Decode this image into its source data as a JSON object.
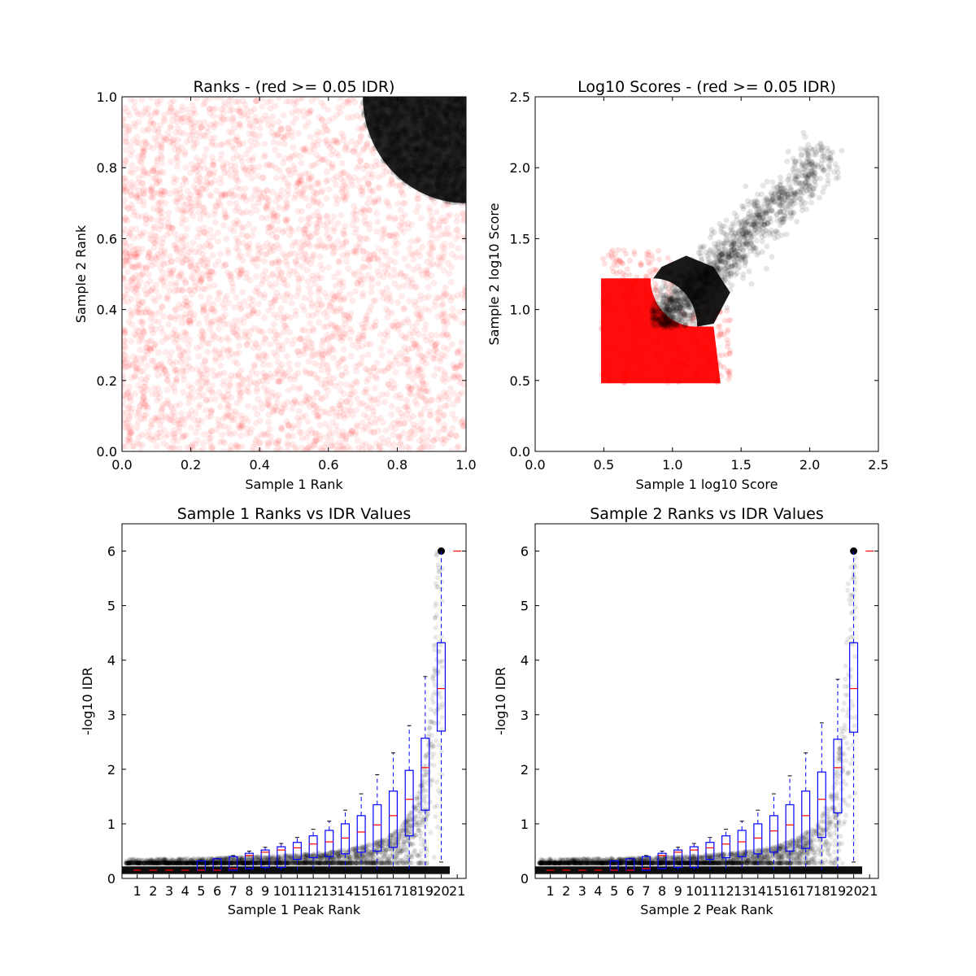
{
  "chart_data": [
    {
      "type": "scatter",
      "title": "Ranks - (red >= 0.05 IDR)",
      "xlabel": "Sample 1 Rank",
      "ylabel": "Sample 2 Rank",
      "xlim": [
        0.0,
        1.0
      ],
      "ylim": [
        0.0,
        1.0
      ],
      "xticks": [
        "0.0",
        "0.2",
        "0.4",
        "0.6",
        "0.8",
        "1.0"
      ],
      "yticks": [
        "0.0",
        "0.2",
        "0.4",
        "0.6",
        "0.8",
        "1.0"
      ],
      "series": [
        {
          "color": "#ff0000",
          "description_region": {
            "x": [
              0.0,
              1.0
            ],
            "y": [
              0.0,
              1.0
            ]
          },
          "points_approx": [
            [
              0.1,
              0.1
            ],
            [
              0.3,
              0.5
            ],
            [
              0.5,
              0.3
            ],
            [
              0.6,
              0.8
            ],
            [
              0.9,
              0.4
            ],
            [
              0.2,
              0.9
            ]
          ]
        },
        {
          "color": "#000000",
          "description_region": {
            "x": [
              0.7,
              1.0
            ],
            "y": [
              0.7,
              1.0
            ]
          },
          "points_approx": [
            [
              0.75,
              0.98
            ],
            [
              0.85,
              0.9
            ],
            [
              0.95,
              0.8
            ],
            [
              0.98,
              0.98
            ],
            [
              0.9,
              0.97
            ]
          ]
        }
      ],
      "grid": false
    },
    {
      "type": "scatter",
      "title": "Log10 Scores - (red >= 0.05 IDR)",
      "xlabel": "Sample 1 log10 Score",
      "ylabel": "Sample 2 log10 Score",
      "xlim": [
        0.0,
        2.5
      ],
      "ylim": [
        0.0,
        2.5
      ],
      "xticks": [
        "0.0",
        "0.5",
        "1.0",
        "1.5",
        "2.0",
        "2.5"
      ],
      "yticks": [
        "0.0",
        "0.5",
        "1.0",
        "1.5",
        "2.0",
        "2.5"
      ],
      "series": [
        {
          "color": "#ff0000",
          "description_region": {
            "x": [
              0.48,
              1.4
            ],
            "y": [
              0.48,
              1.4
            ]
          }
        },
        {
          "color": "#000000",
          "description_region": {
            "x": [
              0.85,
              2.15
            ],
            "y": [
              0.85,
              2.1
            ]
          }
        }
      ],
      "grid": false
    },
    {
      "type": "box",
      "title": "Sample 1 Ranks vs IDR Values",
      "xlabel": "Sample 1 Peak Rank",
      "ylabel": "-log10 IDR",
      "ylim": [
        0,
        6.5
      ],
      "xticks": [
        "1",
        "2",
        "3",
        "4",
        "5",
        "6",
        "7",
        "8",
        "9",
        "10",
        "11",
        "12",
        "13",
        "14",
        "15",
        "16",
        "17",
        "18",
        "19",
        "20",
        "21"
      ],
      "yticks": [
        "0",
        "1",
        "2",
        "3",
        "4",
        "5",
        "6"
      ],
      "boxes": [
        {
          "cat": 1,
          "q1": 0.15,
          "median": 0.15,
          "q3": 0.15,
          "wlo": 0.15,
          "whi": 0.15
        },
        {
          "cat": 2,
          "q1": 0.15,
          "median": 0.15,
          "q3": 0.15,
          "wlo": 0.15,
          "whi": 0.15
        },
        {
          "cat": 3,
          "q1": 0.15,
          "median": 0.15,
          "q3": 0.15,
          "wlo": 0.15,
          "whi": 0.15
        },
        {
          "cat": 4,
          "q1": 0.15,
          "median": 0.15,
          "q3": 0.15,
          "wlo": 0.15,
          "whi": 0.15
        },
        {
          "cat": 5,
          "q1": 0.15,
          "median": 0.15,
          "q3": 0.32,
          "wlo": 0.15,
          "whi": 0.33
        },
        {
          "cat": 6,
          "q1": 0.15,
          "median": 0.15,
          "q3": 0.36,
          "wlo": 0.15,
          "whi": 0.37
        },
        {
          "cat": 7,
          "q1": 0.15,
          "median": 0.18,
          "q3": 0.4,
          "wlo": 0.15,
          "whi": 0.42
        },
        {
          "cat": 8,
          "q1": 0.18,
          "median": 0.42,
          "q3": 0.46,
          "wlo": 0.15,
          "whi": 0.5
        },
        {
          "cat": 9,
          "q1": 0.2,
          "median": 0.48,
          "q3": 0.52,
          "wlo": 0.15,
          "whi": 0.57
        },
        {
          "cat": 10,
          "q1": 0.2,
          "median": 0.52,
          "q3": 0.58,
          "wlo": 0.15,
          "whi": 0.64
        },
        {
          "cat": 11,
          "q1": 0.35,
          "median": 0.56,
          "q3": 0.66,
          "wlo": 0.15,
          "whi": 0.75
        },
        {
          "cat": 12,
          "q1": 0.38,
          "median": 0.63,
          "q3": 0.78,
          "wlo": 0.15,
          "whi": 0.9
        },
        {
          "cat": 13,
          "q1": 0.4,
          "median": 0.67,
          "q3": 0.88,
          "wlo": 0.15,
          "whi": 1.05
        },
        {
          "cat": 14,
          "q1": 0.45,
          "median": 0.74,
          "q3": 1.0,
          "wlo": 0.15,
          "whi": 1.25
        },
        {
          "cat": 15,
          "q1": 0.48,
          "median": 0.85,
          "q3": 1.15,
          "wlo": 0.15,
          "whi": 1.55
        },
        {
          "cat": 16,
          "q1": 0.5,
          "median": 0.98,
          "q3": 1.35,
          "wlo": 0.15,
          "whi": 1.9
        },
        {
          "cat": 17,
          "q1": 0.57,
          "median": 1.15,
          "q3": 1.6,
          "wlo": 0.15,
          "whi": 2.3
        },
        {
          "cat": 18,
          "q1": 0.78,
          "median": 1.45,
          "q3": 1.98,
          "wlo": 0.15,
          "whi": 2.8
        },
        {
          "cat": 19,
          "q1": 1.25,
          "median": 2.03,
          "q3": 2.57,
          "wlo": 0.18,
          "whi": 3.7
        },
        {
          "cat": 20,
          "q1": 2.7,
          "median": 3.48,
          "q3": 4.32,
          "wlo": 0.3,
          "whi": 6.0
        },
        {
          "cat": 21,
          "q1": 6.0,
          "median": 6.0,
          "q3": 6.0,
          "wlo": 6.0,
          "whi": 6.0
        }
      ],
      "grid": false
    },
    {
      "type": "box",
      "title": "Sample 2 Ranks vs IDR Values",
      "xlabel": "Sample 2 Peak Rank",
      "ylabel": "-log10 IDR",
      "ylim": [
        0,
        6.5
      ],
      "xticks": [
        "1",
        "2",
        "3",
        "4",
        "5",
        "6",
        "7",
        "8",
        "9",
        "10",
        "11",
        "12",
        "13",
        "14",
        "15",
        "16",
        "17",
        "18",
        "19",
        "20",
        "21"
      ],
      "yticks": [
        "0",
        "1",
        "2",
        "3",
        "4",
        "5",
        "6"
      ],
      "boxes": [
        {
          "cat": 1,
          "q1": 0.15,
          "median": 0.15,
          "q3": 0.15,
          "wlo": 0.15,
          "whi": 0.15
        },
        {
          "cat": 2,
          "q1": 0.15,
          "median": 0.15,
          "q3": 0.15,
          "wlo": 0.15,
          "whi": 0.15
        },
        {
          "cat": 3,
          "q1": 0.15,
          "median": 0.15,
          "q3": 0.15,
          "wlo": 0.15,
          "whi": 0.15
        },
        {
          "cat": 4,
          "q1": 0.15,
          "median": 0.15,
          "q3": 0.15,
          "wlo": 0.15,
          "whi": 0.15
        },
        {
          "cat": 5,
          "q1": 0.15,
          "median": 0.15,
          "q3": 0.32,
          "wlo": 0.15,
          "whi": 0.33
        },
        {
          "cat": 6,
          "q1": 0.15,
          "median": 0.15,
          "q3": 0.36,
          "wlo": 0.15,
          "whi": 0.37
        },
        {
          "cat": 7,
          "q1": 0.15,
          "median": 0.18,
          "q3": 0.4,
          "wlo": 0.15,
          "whi": 0.42
        },
        {
          "cat": 8,
          "q1": 0.18,
          "median": 0.42,
          "q3": 0.46,
          "wlo": 0.15,
          "whi": 0.5
        },
        {
          "cat": 9,
          "q1": 0.2,
          "median": 0.48,
          "q3": 0.52,
          "wlo": 0.15,
          "whi": 0.57
        },
        {
          "cat": 10,
          "q1": 0.2,
          "median": 0.52,
          "q3": 0.58,
          "wlo": 0.15,
          "whi": 0.64
        },
        {
          "cat": 11,
          "q1": 0.35,
          "median": 0.56,
          "q3": 0.66,
          "wlo": 0.15,
          "whi": 0.75
        },
        {
          "cat": 12,
          "q1": 0.38,
          "median": 0.63,
          "q3": 0.78,
          "wlo": 0.15,
          "whi": 0.9
        },
        {
          "cat": 13,
          "q1": 0.4,
          "median": 0.67,
          "q3": 0.88,
          "wlo": 0.15,
          "whi": 1.05
        },
        {
          "cat": 14,
          "q1": 0.45,
          "median": 0.74,
          "q3": 1.0,
          "wlo": 0.15,
          "whi": 1.25
        },
        {
          "cat": 15,
          "q1": 0.48,
          "median": 0.87,
          "q3": 1.15,
          "wlo": 0.15,
          "whi": 1.55
        },
        {
          "cat": 16,
          "q1": 0.5,
          "median": 0.98,
          "q3": 1.35,
          "wlo": 0.15,
          "whi": 1.88
        },
        {
          "cat": 17,
          "q1": 0.55,
          "median": 1.15,
          "q3": 1.6,
          "wlo": 0.15,
          "whi": 2.3
        },
        {
          "cat": 18,
          "q1": 0.75,
          "median": 1.45,
          "q3": 1.95,
          "wlo": 0.15,
          "whi": 2.85
        },
        {
          "cat": 19,
          "q1": 1.2,
          "median": 2.03,
          "q3": 2.55,
          "wlo": 0.18,
          "whi": 3.65
        },
        {
          "cat": 20,
          "q1": 2.68,
          "median": 3.48,
          "q3": 4.32,
          "wlo": 0.3,
          "whi": 6.0
        },
        {
          "cat": 21,
          "q1": 6.0,
          "median": 6.0,
          "q3": 6.0,
          "wlo": 6.0,
          "whi": 6.0
        }
      ],
      "grid": false
    }
  ],
  "colors": {
    "red_points": "#ff0000",
    "black_points": "#000000",
    "box": "#0000ff",
    "median": "#ff0000"
  }
}
